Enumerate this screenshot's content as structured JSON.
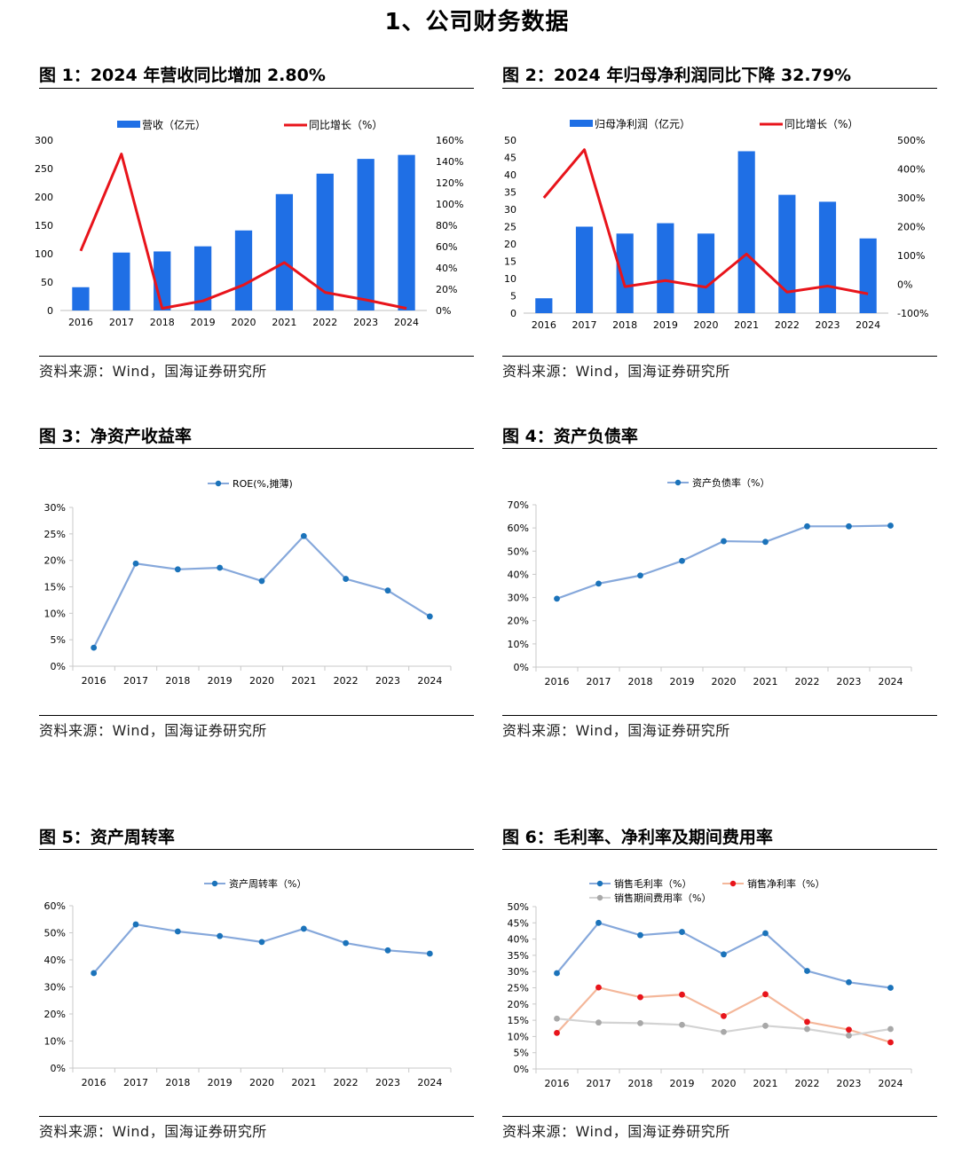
{
  "page": {
    "section_title": "1、公司财务数据"
  },
  "figures": [
    {
      "title": "图 1：2024 年营收同比增加 2.80%",
      "source": "资料来源：Wind，国海证券研究所",
      "chart_data": {
        "type": "bar",
        "categories": [
          "2016",
          "2017",
          "2018",
          "2019",
          "2020",
          "2021",
          "2022",
          "2023",
          "2024"
        ],
        "series": [
          {
            "name": "营收（亿元）",
            "type": "bar",
            "axis": "left",
            "color": "#1f6fe5",
            "values": [
              41,
              102,
              104,
              113,
              141,
              205,
              241,
              267,
              274
            ]
          },
          {
            "name": "同比增长（%）",
            "type": "line",
            "axis": "right",
            "color": "#e8141b",
            "values": [
              56,
              147,
              2,
              9,
              24,
              45,
              17,
              10,
              2
            ]
          }
        ],
        "ylim": [
          0,
          300
        ],
        "yticks": [
          0,
          50,
          100,
          150,
          200,
          250,
          300
        ],
        "y2lim": [
          0,
          160
        ],
        "y2ticks": [
          "0%",
          "20%",
          "40%",
          "60%",
          "80%",
          "100%",
          "120%",
          "140%",
          "160%"
        ],
        "legend": "top"
      }
    },
    {
      "title": "图 2：2024 年归母净利润同比下降 32.79%",
      "source": "资料来源：Wind，国海证券研究所",
      "chart_data": {
        "type": "bar",
        "categories": [
          "2016",
          "2017",
          "2018",
          "2019",
          "2020",
          "2021",
          "2022",
          "2023",
          "2024"
        ],
        "series": [
          {
            "name": "归母净利润（亿元）",
            "type": "bar",
            "axis": "left",
            "color": "#1f6fe5",
            "values": [
              4.3,
              25,
              23,
              26,
              23,
              46.8,
              34.2,
              32.2,
              21.6
            ]
          },
          {
            "name": "同比增长（%）",
            "type": "line",
            "axis": "right",
            "color": "#e8141b",
            "values": [
              300,
              467,
              -8,
              13,
              -10,
              105,
              -27,
              -6,
              -33
            ]
          }
        ],
        "ylim": [
          0,
          50
        ],
        "yticks": [
          0,
          5,
          10,
          15,
          20,
          25,
          30,
          35,
          40,
          45,
          50
        ],
        "y2lim": [
          -100,
          500
        ],
        "y2ticks": [
          "-100%",
          "0%",
          "100%",
          "200%",
          "300%",
          "400%",
          "500%"
        ],
        "legend": "top"
      }
    },
    {
      "title": "图 3：净资产收益率",
      "source": "资料来源：Wind，国海证券研究所",
      "chart_data": {
        "type": "line",
        "categories": [
          "2016",
          "2017",
          "2018",
          "2019",
          "2020",
          "2021",
          "2022",
          "2023",
          "2024"
        ],
        "series": [
          {
            "name": "ROE(%,摊薄)",
            "color": "#86a8db",
            "marker": "#1b73ba",
            "values": [
              3.5,
              19.4,
              18.3,
              18.6,
              16.1,
              24.6,
              16.5,
              14.3,
              9.4
            ]
          }
        ],
        "ylim": [
          0,
          30
        ],
        "yticks": [
          "0%",
          "5%",
          "10%",
          "15%",
          "20%",
          "25%",
          "30%"
        ],
        "legend": "top"
      }
    },
    {
      "title": "图 4：资产负债率",
      "source": "资料来源：Wind，国海证券研究所",
      "chart_data": {
        "type": "line",
        "categories": [
          "2016",
          "2017",
          "2018",
          "2019",
          "2020",
          "2021",
          "2022",
          "2023",
          "2024"
        ],
        "series": [
          {
            "name": "资产负债率（%）",
            "color": "#86a8db",
            "marker": "#1b73ba",
            "values": [
              29.5,
              36,
              39.5,
              45.8,
              54.3,
              54,
              60.7,
              60.7,
              61
            ]
          }
        ],
        "ylim": [
          0,
          70
        ],
        "yticks": [
          "0%",
          "10%",
          "20%",
          "30%",
          "40%",
          "50%",
          "60%",
          "70%"
        ],
        "legend": "top"
      }
    },
    {
      "title": "图 5：资产周转率",
      "source": "资料来源：Wind，国海证券研究所",
      "chart_data": {
        "type": "line",
        "categories": [
          "2016",
          "2017",
          "2018",
          "2019",
          "2020",
          "2021",
          "2022",
          "2023",
          "2024"
        ],
        "series": [
          {
            "name": "资产周转率（%）",
            "color": "#86a8db",
            "marker": "#1b73ba",
            "values": [
              35.1,
              53.1,
              50.5,
              48.8,
              46.6,
              51.5,
              46.2,
              43.5,
              42.3
            ]
          }
        ],
        "ylim": [
          0,
          60
        ],
        "yticks": [
          "0%",
          "10%",
          "20%",
          "30%",
          "40%",
          "50%",
          "60%"
        ],
        "legend": "top"
      }
    },
    {
      "title": "图 6：毛利率、净利率及期间费用率",
      "source": "资料来源：Wind，国海证券研究所",
      "chart_data": {
        "type": "line",
        "categories": [
          "2016",
          "2017",
          "2018",
          "2019",
          "2020",
          "2021",
          "2022",
          "2023",
          "2024"
        ],
        "series": [
          {
            "name": "销售毛利率（%）",
            "color": "#86a8db",
            "marker": "#1b73ba",
            "values": [
              29.5,
              45,
              41.2,
              42.2,
              35.3,
              41.8,
              30.2,
              26.7,
              25
            ]
          },
          {
            "name": "销售净利率（%）",
            "color": "#f4b79a",
            "marker": "#e8141b",
            "values": [
              11.1,
              25.1,
              22.1,
              22.9,
              16.3,
              23,
              14.5,
              12.1,
              8.2
            ]
          },
          {
            "name": "销售期间费用率（%）",
            "color": "#d3d3d3",
            "marker": "#a8a8a8",
            "values": [
              15.5,
              14.3,
              14.1,
              13.6,
              11.4,
              13.3,
              12.3,
              10.3,
              12.3
            ]
          }
        ],
        "ylim": [
          0,
          50
        ],
        "yticks": [
          "0%",
          "5%",
          "10%",
          "15%",
          "20%",
          "25%",
          "30%",
          "35%",
          "40%",
          "45%",
          "50%"
        ],
        "legend": "top"
      }
    }
  ]
}
